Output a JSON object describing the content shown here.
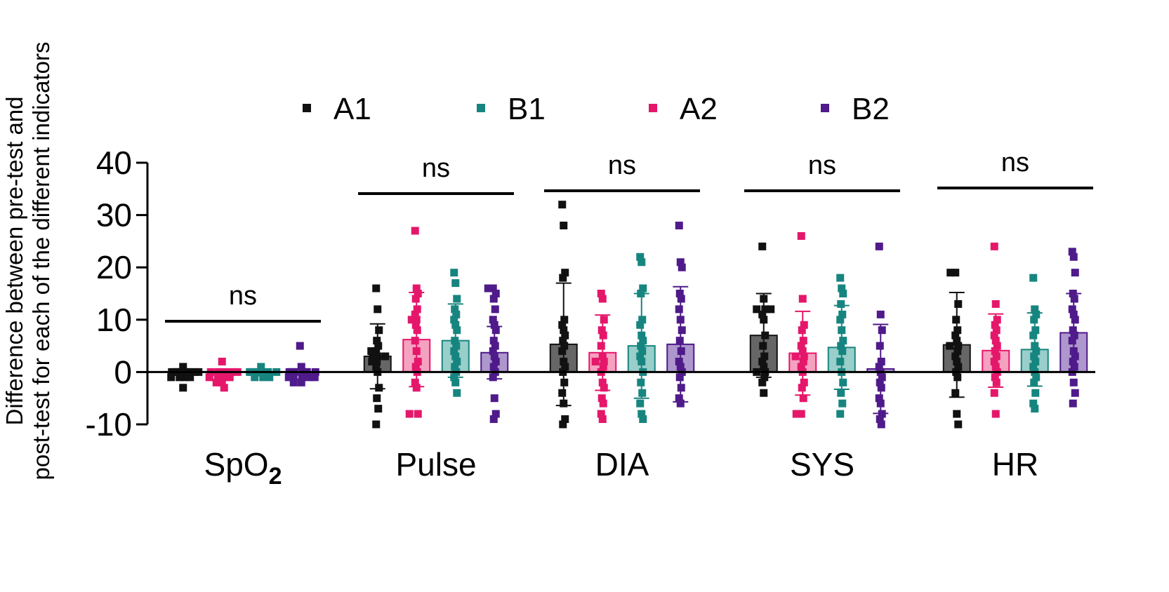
{
  "chart_data": {
    "type": "bar",
    "ylabel_lines": [
      "Difference between pre-test and",
      "post-test for each of the different indicators"
    ],
    "ylim": [
      -10,
      40
    ],
    "yticks": [
      40,
      30,
      20,
      10,
      0,
      -10
    ],
    "ytick_labels": [
      "40",
      "30",
      "20",
      "10",
      "0",
      "-10"
    ],
    "categories": [
      "SpO2",
      "Pulse",
      "DIA",
      "SYS",
      "HR"
    ],
    "category_labels": [
      {
        "main": "SpO",
        "sub": "2"
      },
      {
        "main": "Pulse",
        "sub": ""
      },
      {
        "main": "DIA",
        "sub": ""
      },
      {
        "main": "SYS",
        "sub": ""
      },
      {
        "main": "HR",
        "sub": ""
      }
    ],
    "legend": [
      "A1",
      "B1",
      "A2",
      "B2"
    ],
    "series_order_in_groups": [
      "A1",
      "A2",
      "B1",
      "B2"
    ],
    "significance": [
      "ns",
      "ns",
      "ns",
      "ns",
      "ns"
    ],
    "series": [
      {
        "name": "A1",
        "color": "#111111",
        "fill": "#555555",
        "means": [
          -0.3,
          3.0,
          5.3,
          7.0,
          5.2
        ],
        "sd": [
          0.8,
          6.2,
          11.7,
          8.0,
          10.0
        ],
        "points": [
          [
            -3,
            -1,
            -1,
            0,
            0,
            0,
            0,
            0,
            -1,
            0,
            1,
            0,
            0,
            -1,
            0
          ],
          [
            16,
            12,
            8,
            6,
            5,
            4,
            3,
            3,
            2,
            2,
            1,
            0,
            -3,
            -5,
            -7,
            -10,
            4,
            3
          ],
          [
            32,
            28,
            19,
            18,
            10,
            9,
            8,
            7,
            6,
            5,
            4,
            2,
            1,
            0,
            -2,
            -4,
            -6,
            -9,
            -10
          ],
          [
            24,
            14,
            12,
            12,
            12,
            11,
            10,
            7,
            5,
            3,
            2,
            1,
            0,
            0,
            -1,
            -2,
            -4
          ],
          [
            19,
            19,
            13,
            10,
            8,
            7,
            6,
            5,
            5,
            4,
            3,
            2,
            1,
            0,
            -1,
            -4,
            -8,
            -10
          ]
        ]
      },
      {
        "name": "A2",
        "color": "#e5176a",
        "fill": "#f497b9",
        "means": [
          -0.5,
          6.2,
          3.7,
          3.6,
          4.1
        ],
        "sd": [
          1.0,
          9.0,
          7.2,
          8.0,
          7.0
        ],
        "points": [
          [
            2,
            0,
            0,
            -1,
            -1,
            -2,
            -1,
            0,
            -2,
            -3,
            -1,
            0,
            0
          ],
          [
            27,
            16,
            15,
            14,
            12,
            11,
            10,
            10,
            9,
            8,
            6,
            4,
            2,
            1,
            0,
            -2,
            -3,
            -8,
            -8
          ],
          [
            15,
            14,
            10,
            8,
            7,
            5,
            3,
            2,
            2,
            1,
            0,
            -2,
            -3,
            -5,
            -6,
            -8,
            -9
          ],
          [
            26,
            14,
            9,
            8,
            6,
            5,
            4,
            3,
            3,
            2,
            1,
            0,
            -2,
            -3,
            -5,
            -8,
            -8
          ],
          [
            24,
            13,
            10,
            9,
            8,
            7,
            6,
            5,
            4,
            3,
            2,
            1,
            0,
            -1,
            -2,
            -4,
            -8
          ]
        ]
      },
      {
        "name": "B1",
        "color": "#17857f",
        "fill": "#8ec9c4",
        "means": [
          -0.2,
          6.0,
          5.0,
          4.7,
          4.3
        ],
        "sd": [
          0.5,
          7.0,
          10.0,
          8.0,
          7.0
        ],
        "points": [
          [
            1,
            0,
            0,
            0,
            -1,
            -1,
            0,
            0,
            0,
            -1
          ],
          [
            19,
            17,
            14,
            12,
            11,
            10,
            9,
            8,
            6,
            5,
            4,
            3,
            2,
            1,
            0,
            -1,
            -2,
            -4
          ],
          [
            22,
            21,
            16,
            15,
            10,
            9,
            7,
            6,
            5,
            4,
            3,
            2,
            0,
            -2,
            -4,
            -6,
            -8,
            -9
          ],
          [
            18,
            16,
            15,
            13,
            11,
            10,
            8,
            6,
            5,
            4,
            2,
            0,
            -2,
            -4,
            -6,
            -8
          ],
          [
            18,
            12,
            11,
            10,
            8,
            7,
            5,
            4,
            3,
            2,
            1,
            0,
            -1,
            -2,
            -4,
            -6,
            -7
          ]
        ]
      },
      {
        "name": "B2",
        "color": "#4f1a8a",
        "fill": "#a48cc6",
        "means": [
          -0.4,
          3.7,
          5.3,
          0.6,
          7.5
        ],
        "sd": [
          1.0,
          5.0,
          11.0,
          8.5,
          7.5
        ],
        "points": [
          [
            5,
            1,
            0,
            0,
            -1,
            -1,
            -2,
            -1,
            0,
            0,
            -2,
            -1,
            0,
            0,
            -1
          ],
          [
            16,
            16,
            15,
            14,
            12,
            10,
            9,
            8,
            6,
            5,
            4,
            3,
            2,
            1,
            0,
            -1,
            -5,
            -8,
            -9
          ],
          [
            28,
            21,
            20,
            15,
            14,
            12,
            10,
            8,
            6,
            4,
            2,
            1,
            0,
            -1,
            -3,
            -5,
            -6
          ],
          [
            24,
            11,
            8,
            5,
            2,
            1,
            0,
            -1,
            -2,
            -3,
            -5,
            -6,
            -8,
            -9,
            -10
          ],
          [
            23,
            22,
            19,
            15,
            14,
            12,
            11,
            10,
            8,
            7,
            6,
            4,
            3,
            2,
            1,
            0,
            -2,
            -4,
            -6
          ]
        ]
      }
    ]
  }
}
